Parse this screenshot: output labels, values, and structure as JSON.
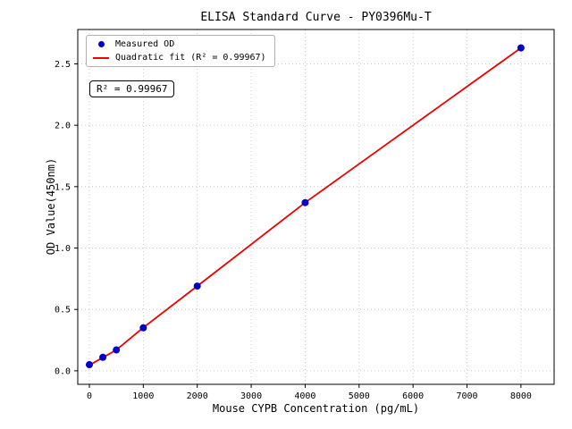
{
  "figure": {
    "title": "ELISA Standard Curve - PY0396Mu-T",
    "xlabel": "Mouse CYPB Concentration (pg/mL)",
    "ylabel": "OD Value(450nm)",
    "annotation": "R² = 0.99967"
  },
  "legend": {
    "position": "upper left",
    "items": [
      {
        "label": "Measured OD",
        "type": "marker",
        "color": "#0000cd"
      },
      {
        "label": "Quadratic fit (R² = 0.99967)",
        "type": "line",
        "color": "#ee0000"
      }
    ]
  },
  "chart_data": {
    "type": "scatter",
    "title": "ELISA Standard Curve - PY0396Mu-T",
    "xlabel": "Mouse CYPB Concentration (pg/mL)",
    "ylabel": "OD Value(450nm)",
    "xlim": [
      -215,
      8615
    ],
    "ylim": [
      -0.11,
      2.78
    ],
    "grid": true,
    "grid_color": "#bbbbbb",
    "legend_position": "upper left",
    "x_ticks": [
      0,
      1000,
      2000,
      3000,
      4000,
      5000,
      6000,
      7000,
      8000
    ],
    "x_tick_labels": [
      "0",
      "1000",
      "2000",
      "3000",
      "4000",
      "5000",
      "6000",
      "7000",
      "8000"
    ],
    "y_ticks": [
      0.0,
      0.5,
      1.0,
      1.5,
      2.0,
      2.5
    ],
    "y_tick_labels": [
      "0.0",
      "0.5",
      "1.0",
      "1.5",
      "2.0",
      "2.5"
    ],
    "r_squared": "0.99967",
    "series": [
      {
        "name": "Measured OD",
        "type": "scatter",
        "color": "#0000cd",
        "x": [
          0,
          250,
          500,
          1000,
          2000,
          4000,
          8000
        ],
        "y": [
          0.05,
          0.11,
          0.17,
          0.35,
          0.69,
          1.37,
          2.63
        ]
      },
      {
        "name": "Quadratic fit (R² = 0.99967)",
        "type": "line",
        "color": "#ee0000",
        "x": [
          0,
          250,
          500,
          1000,
          2000,
          4000,
          8000
        ],
        "y": [
          0.046,
          0.108,
          0.17,
          0.352,
          0.69,
          1.37,
          2.63
        ]
      }
    ]
  }
}
